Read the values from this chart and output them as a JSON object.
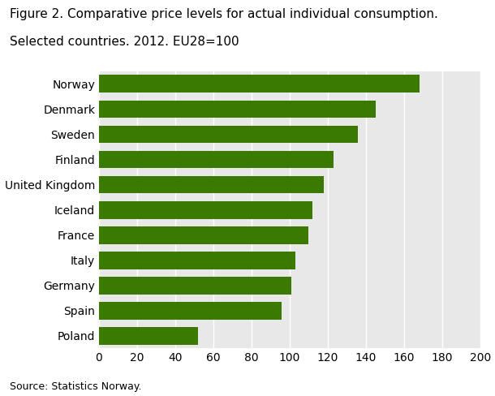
{
  "title_line1": "Figure 2. Comparative price levels for actual individual consumption.",
  "title_line2": "Selected countries. 2012. EU28=100",
  "countries": [
    "Norway",
    "Denmark",
    "Sweden",
    "Finland",
    "United Kingdom",
    "Iceland",
    "France",
    "Italy",
    "Germany",
    "Spain",
    "Poland"
  ],
  "values": [
    168,
    145,
    136,
    123,
    118,
    112,
    110,
    103,
    101,
    96,
    52
  ],
  "bar_color": "#3a7a00",
  "background_color": "#ffffff",
  "plot_bg_color": "#e8e8e8",
  "grid_color": "#ffffff",
  "xlim": [
    0,
    200
  ],
  "xticks": [
    0,
    20,
    40,
    60,
    80,
    100,
    120,
    140,
    160,
    180,
    200
  ],
  "source": "Source: Statistics Norway.",
  "title_fontsize": 11,
  "label_fontsize": 10,
  "tick_fontsize": 10,
  "source_fontsize": 9
}
